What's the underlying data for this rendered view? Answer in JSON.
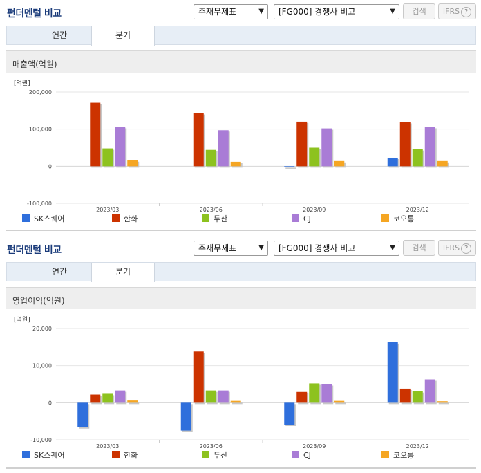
{
  "panels": [
    {
      "title": "펀더멘털 비교",
      "select1": "주재무제표",
      "select2": "[FG000] 경쟁사 비교",
      "search_label": "검색",
      "ifrs_label": "IFRS",
      "tabs": [
        {
          "label": "연간"
        },
        {
          "label": "분기"
        }
      ],
      "active_tab": "분기"
    },
    {
      "title": "펀더멘털 비교",
      "select1": "주재무제표",
      "select2": "[FG000] 경쟁사 비교",
      "search_label": "검색",
      "ifrs_label": "IFRS",
      "tabs": [
        {
          "label": "연간"
        },
        {
          "label": "분기"
        }
      ],
      "active_tab": "분기"
    }
  ],
  "legend": [
    {
      "name": "SK스퀘어",
      "color": "#2f6fdc"
    },
    {
      "name": "한화",
      "color": "#cc3300"
    },
    {
      "name": "두산",
      "color": "#8dc21f"
    },
    {
      "name": "CJ",
      "color": "#a97cd6"
    },
    {
      "name": "코오롱",
      "color": "#f5a623"
    }
  ],
  "chart_data": [
    {
      "type": "bar",
      "title": "매출액(억원)",
      "unit_label": "[억원]",
      "categories": [
        "2023/03",
        "2023/06",
        "2023/09",
        "2023/12"
      ],
      "ylim": [
        -100000,
        200000
      ],
      "yticks": [
        200000,
        100000,
        0,
        -100000
      ],
      "ytick_labels": [
        "200,000",
        "100,000",
        "0",
        "-100,000"
      ],
      "series": [
        {
          "name": "SK스퀘어",
          "values": [
            0,
            0,
            -3000,
            23000
          ]
        },
        {
          "name": "한화",
          "values": [
            171000,
            143000,
            120000,
            119000
          ]
        },
        {
          "name": "두산",
          "values": [
            48000,
            44000,
            50000,
            46000
          ]
        },
        {
          "name": "CJ",
          "values": [
            106000,
            97000,
            102000,
            106000
          ]
        },
        {
          "name": "코오롱",
          "values": [
            16000,
            12000,
            14000,
            14000
          ]
        }
      ],
      "grid": true,
      "legend_position": "bottom"
    },
    {
      "type": "bar",
      "title": "영업이익(억원)",
      "unit_label": "[억원]",
      "categories": [
        "2023/03",
        "2023/06",
        "2023/09",
        "2023/12"
      ],
      "ylim": [
        -10000,
        20000
      ],
      "yticks": [
        20000,
        10000,
        0,
        -10000
      ],
      "ytick_labels": [
        "20,000",
        "10,000",
        "0",
        "-10,000"
      ],
      "series": [
        {
          "name": "SK스퀘어",
          "values": [
            -6600,
            -7500,
            -5900,
            16300
          ]
        },
        {
          "name": "한화",
          "values": [
            2200,
            13800,
            2900,
            3800
          ]
        },
        {
          "name": "두산",
          "values": [
            2400,
            3300,
            5200,
            3100
          ]
        },
        {
          "name": "CJ",
          "values": [
            3300,
            3300,
            5000,
            6300
          ]
        },
        {
          "name": "코오롱",
          "values": [
            600,
            500,
            500,
            400
          ]
        }
      ],
      "grid": true,
      "legend_position": "bottom"
    }
  ]
}
